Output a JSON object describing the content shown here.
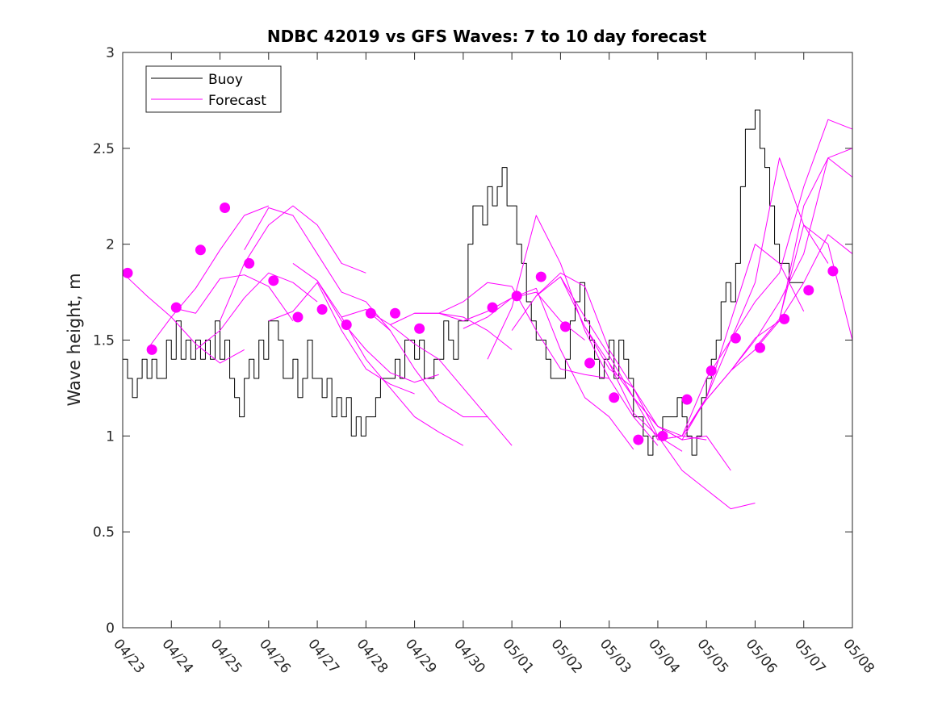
{
  "chart_data": {
    "type": "line",
    "title": "NDBC 42019 vs GFS Waves: 7 to 10 day forecast",
    "xlabel": "",
    "ylabel": "Wave height, m",
    "xlim": [
      0,
      15
    ],
    "ylim": [
      0,
      3
    ],
    "x_tick_labels": [
      "04/23",
      "04/24",
      "04/25",
      "04/26",
      "04/27",
      "04/28",
      "04/29",
      "04/30",
      "05/01",
      "05/02",
      "05/03",
      "05/04",
      "05/05",
      "05/06",
      "05/07",
      "05/08"
    ],
    "y_tick_labels": [
      "0",
      "0.5",
      "1",
      "1.5",
      "2",
      "2.5",
      "3"
    ],
    "y_ticks": [
      0,
      0.5,
      1,
      1.5,
      2,
      2.5,
      3
    ],
    "grid": false,
    "legend_position": "top-left",
    "colors": {
      "buoy": "#000000",
      "forecast": "#ff00ff"
    },
    "series": [
      {
        "name": "Buoy",
        "style": "line",
        "x": [
          0.0,
          0.1,
          0.2,
          0.3,
          0.4,
          0.5,
          0.6,
          0.7,
          0.8,
          0.9,
          1.0,
          1.1,
          1.2,
          1.3,
          1.4,
          1.5,
          1.6,
          1.7,
          1.8,
          1.9,
          2.0,
          2.1,
          2.2,
          2.3,
          2.4,
          2.5,
          2.6,
          2.7,
          2.8,
          2.9,
          3.0,
          3.1,
          3.2,
          3.3,
          3.4,
          3.5,
          3.6,
          3.7,
          3.8,
          3.9,
          4.0,
          4.1,
          4.2,
          4.3,
          4.4,
          4.5,
          4.6,
          4.7,
          4.8,
          4.9,
          5.0,
          5.1,
          5.2,
          5.3,
          5.4,
          5.5,
          5.6,
          5.7,
          5.8,
          5.9,
          6.0,
          6.1,
          6.2,
          6.3,
          6.4,
          6.5,
          6.6,
          6.7,
          6.8,
          6.9,
          7.0,
          7.1,
          7.2,
          7.3,
          7.4,
          7.5,
          7.6,
          7.7,
          7.8,
          7.9,
          8.0,
          8.1,
          8.2,
          8.3,
          8.4,
          8.5,
          8.6,
          8.7,
          8.8,
          8.9,
          9.0,
          9.1,
          9.2,
          9.3,
          9.4,
          9.5,
          9.6,
          9.7,
          9.8,
          9.9,
          10.0,
          10.1,
          10.2,
          10.3,
          10.4,
          10.5,
          10.6,
          10.7,
          10.8,
          10.9,
          11.0,
          11.1,
          11.2,
          11.3,
          11.4,
          11.5,
          11.6,
          11.7,
          11.8,
          11.9,
          12.0,
          12.1,
          12.2,
          12.3,
          12.4,
          12.5,
          12.6,
          12.7,
          12.8,
          12.9,
          13.0,
          13.1,
          13.2,
          13.3,
          13.4,
          13.5,
          13.6,
          13.7,
          13.8,
          13.9,
          14.0
        ],
        "values": [
          1.4,
          1.3,
          1.2,
          1.3,
          1.4,
          1.3,
          1.4,
          1.3,
          1.3,
          1.5,
          1.4,
          1.6,
          1.4,
          1.5,
          1.4,
          1.5,
          1.4,
          1.5,
          1.4,
          1.6,
          1.4,
          1.5,
          1.3,
          1.2,
          1.1,
          1.3,
          1.4,
          1.3,
          1.5,
          1.4,
          1.6,
          1.6,
          1.5,
          1.3,
          1.3,
          1.4,
          1.2,
          1.3,
          1.5,
          1.3,
          1.3,
          1.2,
          1.3,
          1.1,
          1.2,
          1.1,
          1.2,
          1.0,
          1.1,
          1.0,
          1.1,
          1.1,
          1.2,
          1.3,
          1.3,
          1.3,
          1.4,
          1.3,
          1.5,
          1.5,
          1.4,
          1.5,
          1.3,
          1.3,
          1.4,
          1.4,
          1.6,
          1.5,
          1.4,
          1.6,
          1.6,
          2.0,
          2.2,
          2.2,
          2.1,
          2.3,
          2.2,
          2.3,
          2.4,
          2.2,
          2.2,
          2.0,
          1.9,
          1.7,
          1.6,
          1.5,
          1.5,
          1.4,
          1.3,
          1.3,
          1.3,
          1.4,
          1.6,
          1.7,
          1.8,
          1.6,
          1.5,
          1.4,
          1.3,
          1.4,
          1.5,
          1.3,
          1.5,
          1.4,
          1.3,
          1.1,
          1.1,
          1.0,
          0.9,
          1.0,
          1.0,
          1.1,
          1.1,
          1.1,
          1.2,
          1.1,
          1.0,
          0.9,
          1.0,
          1.2,
          1.3,
          1.4,
          1.5,
          1.7,
          1.8,
          1.7,
          1.9,
          2.3,
          2.6,
          2.6,
          2.7,
          2.5,
          2.4,
          2.2,
          2.0,
          1.9,
          1.9,
          1.8,
          1.8,
          1.8,
          1.8
        ]
      },
      {
        "name": "Forecast",
        "style": "line",
        "x": [
          0,
          0.5,
          1,
          1.5,
          2,
          2.5
        ],
        "values": [
          1.85,
          1.73,
          1.62,
          1.48,
          1.38,
          1.45
        ]
      },
      {
        "name": "",
        "style": "line",
        "x": [
          0.5,
          1,
          1.5,
          2,
          2.5,
          3
        ],
        "values": [
          1.45,
          1.62,
          1.77,
          1.97,
          2.15,
          2.2
        ]
      },
      {
        "name": "",
        "style": "line",
        "x": [
          1,
          1.5,
          2,
          2.5,
          3,
          3.5
        ],
        "values": [
          1.67,
          1.64,
          1.82,
          1.84,
          1.78,
          1.6
        ]
      },
      {
        "name": "",
        "style": "line",
        "x": [
          1.5,
          2,
          2.5,
          3,
          3.5,
          4
        ],
        "values": [
          1.45,
          1.55,
          1.72,
          1.85,
          1.8,
          1.7
        ]
      },
      {
        "name": "",
        "style": "line",
        "x": [
          2,
          2.5,
          3,
          3.5,
          4,
          4.5,
          5
        ],
        "values": [
          1.6,
          1.9,
          2.1,
          2.2,
          2.1,
          1.9,
          1.85
        ]
      },
      {
        "name": "",
        "style": "line",
        "x": [
          2.5,
          3,
          3.5,
          4,
          4.5,
          5,
          5.5
        ],
        "values": [
          1.97,
          2.19,
          2.15,
          1.95,
          1.75,
          1.7,
          1.55
        ]
      },
      {
        "name": "",
        "style": "line",
        "x": [
          3,
          3.5,
          4,
          4.5,
          5,
          5.5,
          6
        ],
        "values": [
          1.6,
          1.65,
          1.8,
          1.55,
          1.35,
          1.27,
          1.22
        ]
      },
      {
        "name": "",
        "style": "line",
        "x": [
          3.5,
          4,
          4.5,
          5,
          5.5,
          6,
          6.5
        ],
        "values": [
          1.9,
          1.81,
          1.6,
          1.45,
          1.33,
          1.28,
          1.32
        ]
      },
      {
        "name": "",
        "style": "line",
        "x": [
          4,
          4.5,
          5,
          5.5,
          6,
          6.5,
          7
        ],
        "values": [
          1.81,
          1.62,
          1.4,
          1.25,
          1.1,
          1.02,
          0.95
        ]
      },
      {
        "name": "",
        "style": "line",
        "x": [
          4.5,
          5,
          5.5,
          6,
          6.5,
          7,
          7.5
        ],
        "values": [
          1.62,
          1.66,
          1.55,
          1.35,
          1.18,
          1.1,
          1.1
        ]
      },
      {
        "name": "",
        "style": "line",
        "x": [
          5,
          5.5,
          6,
          6.5,
          7,
          7.5,
          8
        ],
        "values": [
          1.66,
          1.58,
          1.48,
          1.4,
          1.25,
          1.1,
          0.95
        ]
      },
      {
        "name": "",
        "style": "line",
        "x": [
          5.5,
          6,
          6.5,
          7,
          7.5,
          8
        ],
        "values": [
          1.58,
          1.64,
          1.64,
          1.62,
          1.55,
          1.45
        ]
      },
      {
        "name": "",
        "style": "line",
        "x": [
          6,
          6.5,
          7,
          7.5,
          8,
          8.5,
          9,
          9.5
        ],
        "values": [
          1.64,
          1.64,
          1.6,
          1.65,
          1.72,
          1.75,
          1.6,
          1.5
        ]
      },
      {
        "name": "",
        "style": "line",
        "x": [
          6.5,
          7,
          7.5,
          8,
          8.5,
          9,
          9.5,
          10
        ],
        "values": [
          1.64,
          1.7,
          1.8,
          1.78,
          1.55,
          1.35,
          1.32,
          1.3
        ]
      },
      {
        "name": "",
        "style": "line",
        "x": [
          7,
          7.5,
          8,
          8.5,
          9,
          9.5,
          10,
          10.5
        ],
        "values": [
          1.56,
          1.62,
          1.72,
          1.77,
          1.45,
          1.2,
          1.1,
          0.93
        ]
      },
      {
        "name": "",
        "style": "line",
        "x": [
          7.5,
          8,
          8.5,
          9,
          9.5,
          10,
          10.5,
          11
        ],
        "values": [
          1.4,
          1.67,
          2.15,
          1.9,
          1.55,
          1.3,
          1.1,
          0.95
        ]
      },
      {
        "name": "",
        "style": "line",
        "x": [
          8,
          8.5,
          9,
          9.5,
          10,
          10.5,
          11,
          11.5
        ],
        "values": [
          1.55,
          1.73,
          1.85,
          1.78,
          1.45,
          1.25,
          1.0,
          0.92
        ]
      },
      {
        "name": "",
        "style": "line",
        "x": [
          8.5,
          9,
          9.5,
          10,
          10.5,
          11,
          11.5,
          12
        ],
        "values": [
          1.73,
          1.83,
          1.62,
          1.42,
          1.2,
          1.05,
          1.0,
          0.98
        ]
      },
      {
        "name": "",
        "style": "line",
        "x": [
          9,
          9.5,
          10,
          10.5,
          11,
          11.5,
          12,
          12.5
        ],
        "values": [
          1.83,
          1.57,
          1.35,
          1.25,
          1.05,
          0.98,
          1.0,
          0.82
        ]
      },
      {
        "name": "",
        "style": "line",
        "x": [
          9.5,
          10,
          10.5,
          11,
          11.5,
          12,
          12.5,
          13
        ],
        "values": [
          1.57,
          1.38,
          1.12,
          1.0,
          0.82,
          0.72,
          0.62,
          0.65
        ]
      },
      {
        "name": "",
        "style": "line",
        "x": [
          10,
          10.5,
          11,
          11.5,
          12,
          12.5,
          13,
          13.5,
          14
        ],
        "values": [
          1.38,
          1.2,
          1.05,
          0.98,
          1.2,
          1.6,
          2.0,
          1.9,
          1.65
        ]
      },
      {
        "name": "",
        "style": "line",
        "x": [
          10.5,
          11,
          11.5,
          12,
          12.5,
          13,
          13.5,
          14,
          14.5
        ],
        "values": [
          1.2,
          0.98,
          1.0,
          1.3,
          1.5,
          1.8,
          2.45,
          2.1,
          1.9
        ]
      },
      {
        "name": "",
        "style": "line",
        "x": [
          11,
          11.5,
          12,
          12.5,
          13,
          13.5,
          14,
          14.5,
          15
        ],
        "values": [
          0.98,
          1.0,
          1.2,
          1.5,
          1.7,
          1.85,
          2.3,
          2.65,
          2.6
        ]
      },
      {
        "name": "",
        "style": "line",
        "x": [
          11.5,
          12,
          12.5,
          13,
          13.5,
          14,
          14.5,
          15
        ],
        "values": [
          1.0,
          1.19,
          1.34,
          1.5,
          1.7,
          1.95,
          2.45,
          2.5
        ]
      },
      {
        "name": "",
        "style": "line",
        "x": [
          12,
          12.5,
          13,
          13.5,
          14,
          14.5,
          15
        ],
        "values": [
          1.19,
          1.34,
          1.45,
          1.6,
          1.8,
          2.05,
          1.95
        ]
      },
      {
        "name": "",
        "style": "line",
        "x": [
          12.5,
          13,
          13.5,
          14,
          14.5,
          15
        ],
        "values": [
          1.34,
          1.51,
          1.6,
          2.2,
          2.45,
          2.35
        ]
      },
      {
        "name": "",
        "style": "line",
        "x": [
          13,
          13.5,
          14,
          14.5,
          15
        ],
        "values": [
          1.46,
          1.61,
          2.1,
          2.0,
          1.5
        ]
      },
      {
        "name": "",
        "style": "markers",
        "x": [
          0.1,
          0.6,
          1.1,
          1.6,
          2.1,
          2.6,
          3.1,
          3.6,
          4.1,
          4.6,
          5.1,
          5.6,
          6.1,
          7.6,
          8.1,
          8.6,
          9.1,
          9.6,
          10.1,
          10.6,
          11.1,
          11.6,
          12.1,
          12.6,
          13.1,
          13.6,
          14.1,
          14.6
        ],
        "values": [
          1.85,
          1.45,
          1.67,
          1.97,
          2.19,
          1.9,
          1.81,
          1.62,
          1.66,
          1.58,
          1.64,
          1.64,
          1.56,
          1.67,
          1.73,
          1.83,
          1.57,
          1.38,
          1.2,
          0.98,
          1.0,
          1.19,
          1.34,
          1.51,
          1.46,
          1.61,
          1.76,
          1.86
        ]
      }
    ]
  }
}
